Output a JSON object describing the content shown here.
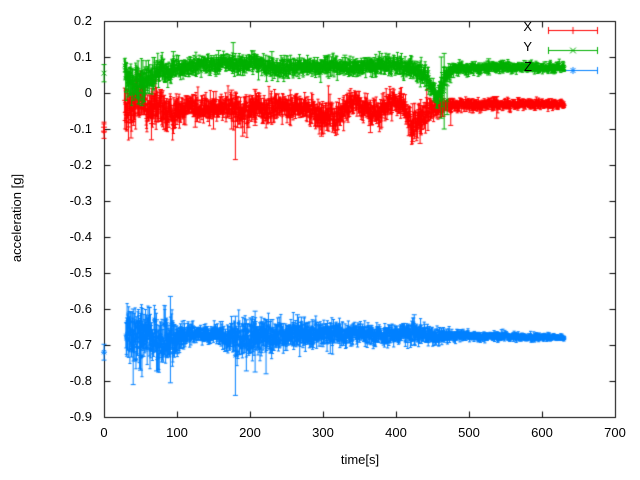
{
  "chart_data": {
    "type": "scatter",
    "title": "",
    "xlabel": "time[s]",
    "ylabel": "acceleration [g]",
    "xlim": [
      0,
      700
    ],
    "ylim": [
      -0.9,
      0.2
    ],
    "x_ticks": [
      "0",
      "100",
      "200",
      "300",
      "400",
      "500",
      "600",
      "700"
    ],
    "x_tick_values": [
      0,
      100,
      200,
      300,
      400,
      500,
      600,
      700
    ],
    "y_ticks": [
      "0.2",
      "0.1",
      "0",
      "-0.1",
      "-0.2",
      "-0.3",
      "-0.4",
      "-0.5",
      "-0.6",
      "-0.7",
      "-0.8",
      "-0.9"
    ],
    "y_tick_values": [
      0.2,
      0.1,
      0,
      -0.1,
      -0.2,
      -0.3,
      -0.4,
      -0.5,
      -0.6,
      -0.7,
      -0.8,
      -0.9
    ],
    "grid": false,
    "legend_position": "top-right",
    "background_color": "#ffffff",
    "axis_color": "#000000",
    "series": [
      {
        "name": "X",
        "color": "#ff0000",
        "marker": "plus",
        "style": "errorbars",
        "isolated": [
          [
            0,
            -0.095,
            0.014
          ],
          [
            0,
            -0.106,
            0.02
          ]
        ],
        "range": [
          28,
          631
        ],
        "profile": [
          [
            28,
            -0.05,
            0.05
          ],
          [
            36,
            -0.045,
            0.055
          ],
          [
            44,
            -0.02,
            0.05
          ],
          [
            52,
            -0.015,
            0.045
          ],
          [
            60,
            -0.05,
            0.04
          ],
          [
            68,
            -0.025,
            0.048
          ],
          [
            76,
            -0.04,
            0.05
          ],
          [
            85,
            -0.06,
            0.05
          ],
          [
            95,
            -0.065,
            0.042
          ],
          [
            105,
            -0.05,
            0.035
          ],
          [
            115,
            -0.042,
            0.03
          ],
          [
            130,
            -0.042,
            0.03
          ],
          [
            145,
            -0.045,
            0.03
          ],
          [
            158,
            -0.04,
            0.03
          ],
          [
            170,
            -0.042,
            0.032
          ],
          [
            180,
            -0.05,
            0.042
          ],
          [
            190,
            -0.062,
            0.04
          ],
          [
            200,
            -0.048,
            0.036
          ],
          [
            212,
            -0.038,
            0.033
          ],
          [
            225,
            -0.044,
            0.035
          ],
          [
            240,
            -0.036,
            0.03
          ],
          [
            255,
            -0.042,
            0.033
          ],
          [
            270,
            -0.036,
            0.03
          ],
          [
            285,
            -0.046,
            0.033
          ],
          [
            298,
            -0.07,
            0.038
          ],
          [
            308,
            -0.056,
            0.038
          ],
          [
            318,
            -0.078,
            0.038
          ],
          [
            328,
            -0.05,
            0.035
          ],
          [
            340,
            -0.027,
            0.03
          ],
          [
            352,
            -0.032,
            0.03
          ],
          [
            365,
            -0.056,
            0.035
          ],
          [
            378,
            -0.052,
            0.035
          ],
          [
            392,
            -0.03,
            0.03
          ],
          [
            403,
            -0.027,
            0.03
          ],
          [
            413,
            -0.05,
            0.038
          ],
          [
            423,
            -0.085,
            0.04
          ],
          [
            433,
            -0.08,
            0.042
          ],
          [
            443,
            -0.052,
            0.035
          ],
          [
            455,
            -0.04,
            0.025
          ],
          [
            468,
            -0.038,
            0.018
          ],
          [
            490,
            -0.033,
            0.016
          ],
          [
            520,
            -0.032,
            0.015
          ],
          [
            560,
            -0.031,
            0.014
          ],
          [
            600,
            -0.03,
            0.013
          ],
          [
            631,
            -0.031,
            0.012
          ]
        ],
        "outliers": [
          [
            37,
            0.0,
            -0.125
          ],
          [
            65,
            -0.04,
            -0.13
          ],
          [
            125,
            -0.02,
            -0.095
          ],
          [
            150,
            -0.02,
            -0.1
          ],
          [
            175,
            0.008,
            -0.1
          ],
          [
            180,
            0.0,
            -0.185
          ],
          [
            190,
            -0.04,
            -0.12
          ],
          [
            207,
            0.01,
            -0.09
          ],
          [
            298,
            -0.03,
            -0.12
          ],
          [
            365,
            -0.02,
            -0.11
          ],
          [
            423,
            -0.03,
            -0.135
          ],
          [
            433,
            -0.035,
            -0.14
          ],
          [
            475,
            -0.015,
            -0.09
          ],
          [
            538,
            -0.01,
            -0.07
          ]
        ]
      },
      {
        "name": "Y",
        "color": "#00b000",
        "marker": "cross",
        "style": "errorbars",
        "isolated": [
          [
            0,
            0.055,
            0.024
          ]
        ],
        "range": [
          28,
          631
        ],
        "profile": [
          [
            28,
            0.05,
            0.05
          ],
          [
            36,
            0.04,
            0.05
          ],
          [
            44,
            0.03,
            0.047
          ],
          [
            52,
            0.032,
            0.044
          ],
          [
            60,
            0.045,
            0.04
          ],
          [
            70,
            0.055,
            0.035
          ],
          [
            80,
            0.06,
            0.032
          ],
          [
            95,
            0.065,
            0.028
          ],
          [
            110,
            0.071,
            0.025
          ],
          [
            125,
            0.077,
            0.024
          ],
          [
            140,
            0.08,
            0.023
          ],
          [
            152,
            0.076,
            0.022
          ],
          [
            163,
            0.088,
            0.02
          ],
          [
            172,
            0.084,
            0.022
          ],
          [
            185,
            0.076,
            0.024
          ],
          [
            200,
            0.08,
            0.024
          ],
          [
            215,
            0.076,
            0.024
          ],
          [
            230,
            0.07,
            0.024
          ],
          [
            250,
            0.072,
            0.023
          ],
          [
            270,
            0.07,
            0.022
          ],
          [
            290,
            0.072,
            0.022
          ],
          [
            310,
            0.075,
            0.024
          ],
          [
            330,
            0.07,
            0.022
          ],
          [
            350,
            0.072,
            0.022
          ],
          [
            370,
            0.076,
            0.024
          ],
          [
            385,
            0.08,
            0.022
          ],
          [
            400,
            0.076,
            0.022
          ],
          [
            415,
            0.07,
            0.024
          ],
          [
            428,
            0.064,
            0.025
          ],
          [
            440,
            0.05,
            0.03
          ],
          [
            450,
            0.012,
            0.028
          ],
          [
            457,
            -0.008,
            0.024
          ],
          [
            463,
            0.015,
            0.035
          ],
          [
            470,
            0.058,
            0.024
          ],
          [
            482,
            0.068,
            0.017
          ],
          [
            510,
            0.07,
            0.015
          ],
          [
            545,
            0.072,
            0.014
          ],
          [
            585,
            0.07,
            0.013
          ],
          [
            631,
            0.072,
            0.012
          ]
        ],
        "outliers": [
          [
            48,
            0.0,
            -0.03
          ],
          [
            52,
            0.0,
            -0.035
          ],
          [
            95,
            0.115,
            0.05
          ],
          [
            157,
            0.118,
            0.06
          ],
          [
            177,
            0.14,
            0.06
          ],
          [
            230,
            0.115,
            0.07
          ],
          [
            330,
            0.105,
            0.06
          ],
          [
            462,
            0.1,
            -0.07
          ],
          [
            466,
            0.11,
            -0.1
          ],
          [
            470,
            0.02,
            -0.06
          ],
          [
            527,
            0.095,
            0.05
          ]
        ]
      },
      {
        "name": "Z",
        "color": "#0080ff",
        "marker": "star",
        "style": "errorbars",
        "isolated": [
          [
            0,
            -0.72,
            0.022
          ]
        ],
        "range": [
          30,
          631
        ],
        "profile": [
          [
            30,
            -0.68,
            0.066
          ],
          [
            45,
            -0.685,
            0.072
          ],
          [
            55,
            -0.68,
            0.07
          ],
          [
            65,
            -0.675,
            0.065
          ],
          [
            75,
            -0.68,
            0.065
          ],
          [
            85,
            -0.685,
            0.06
          ],
          [
            93,
            -0.678,
            0.058
          ],
          [
            102,
            -0.674,
            0.042
          ],
          [
            112,
            -0.67,
            0.028
          ],
          [
            125,
            -0.668,
            0.021
          ],
          [
            140,
            -0.67,
            0.021
          ],
          [
            155,
            -0.672,
            0.024
          ],
          [
            168,
            -0.676,
            0.034
          ],
          [
            180,
            -0.682,
            0.052
          ],
          [
            190,
            -0.685,
            0.048
          ],
          [
            200,
            -0.68,
            0.044
          ],
          [
            210,
            -0.676,
            0.044
          ],
          [
            222,
            -0.68,
            0.044
          ],
          [
            233,
            -0.676,
            0.038
          ],
          [
            246,
            -0.672,
            0.034
          ],
          [
            260,
            -0.668,
            0.033
          ],
          [
            268,
            -0.662,
            0.035
          ],
          [
            278,
            -0.67,
            0.032
          ],
          [
            292,
            -0.668,
            0.03
          ],
          [
            305,
            -0.67,
            0.03
          ],
          [
            318,
            -0.668,
            0.029
          ],
          [
            332,
            -0.67,
            0.028
          ],
          [
            346,
            -0.668,
            0.028
          ],
          [
            360,
            -0.671,
            0.027
          ],
          [
            375,
            -0.672,
            0.026
          ],
          [
            390,
            -0.671,
            0.025
          ],
          [
            405,
            -0.672,
            0.025
          ],
          [
            418,
            -0.669,
            0.027
          ],
          [
            427,
            -0.664,
            0.031
          ],
          [
            437,
            -0.67,
            0.027
          ],
          [
            452,
            -0.672,
            0.021
          ],
          [
            470,
            -0.673,
            0.017
          ],
          [
            500,
            -0.675,
            0.013
          ],
          [
            530,
            -0.676,
            0.011
          ],
          [
            562,
            -0.677,
            0.01
          ],
          [
            595,
            -0.678,
            0.009
          ],
          [
            631,
            -0.679,
            0.008
          ]
        ],
        "outliers": [
          [
            40,
            -0.6,
            -0.81
          ],
          [
            50,
            -0.612,
            -0.77
          ],
          [
            62,
            -0.596,
            -0.7
          ],
          [
            72,
            -0.63,
            -0.772
          ],
          [
            91,
            -0.565,
            -0.805
          ],
          [
            180,
            -0.62,
            -0.84
          ],
          [
            195,
            -0.63,
            -0.772
          ],
          [
            207,
            -0.606,
            -0.775
          ],
          [
            222,
            -0.63,
            -0.78
          ],
          [
            265,
            -0.616,
            -0.7
          ],
          [
            310,
            -0.64,
            -0.724
          ],
          [
            425,
            -0.616,
            -0.7
          ]
        ]
      }
    ]
  }
}
